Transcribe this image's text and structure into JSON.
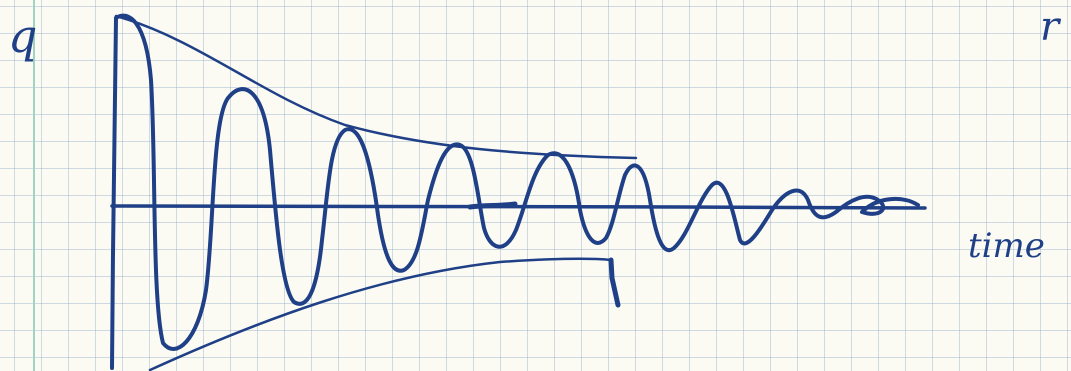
{
  "diagram": {
    "type": "damped-oscillation-sketch",
    "y_axis_label": "q",
    "x_axis_label": "time",
    "corner_mark": "r",
    "ink_color": "#1f3f86",
    "paper_color": "#fbfbf4",
    "grid_color": "#96afcd",
    "margin_line_color": "#9fd3c2"
  }
}
